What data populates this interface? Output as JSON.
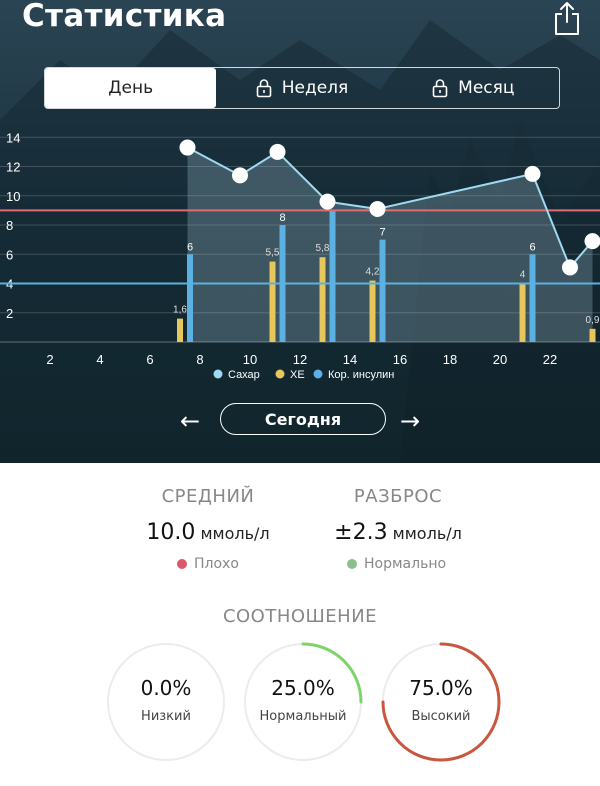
{
  "header": {
    "title": "Статистика"
  },
  "tabs": [
    {
      "label": "День",
      "active": true,
      "locked": false
    },
    {
      "label": "Неделя",
      "active": false,
      "locked": true
    },
    {
      "label": "Месяц",
      "active": false,
      "locked": true
    }
  ],
  "colors": {
    "sugar": "#9fd9f2",
    "xe": "#e7c65b",
    "insulin": "#5ab1e2",
    "high_line": "#e06b70",
    "low_line": "#5ab1e2",
    "bad": "#d9596a",
    "normal": "#8cbf8c",
    "ring_green": "#7fd36a",
    "ring_red": "#c9573f"
  },
  "chart_data": {
    "type": "line",
    "y_ticks": [
      "2",
      "4",
      "6",
      "8",
      "10",
      "12",
      "14"
    ],
    "x_ticks": [
      "2",
      "4",
      "6",
      "8",
      "10",
      "12",
      "14",
      "16",
      "18",
      "20",
      "22"
    ],
    "xlim": [
      0,
      24
    ],
    "ylim": [
      0,
      14.5
    ],
    "thresholds": [
      {
        "value": 9,
        "color": "#e06b70"
      },
      {
        "value": 4,
        "color": "#5ab1e2"
      }
    ],
    "legend": [
      "Сахар",
      "ХЕ",
      "Кор. инсулин"
    ],
    "series": [
      {
        "name": "Сахар",
        "type": "line",
        "points": [
          [
            7.5,
            13.3
          ],
          [
            9.6,
            11.4
          ],
          [
            11.1,
            13.0
          ],
          [
            13.1,
            9.6
          ],
          [
            15.1,
            9.1
          ],
          [
            21.3,
            11.5
          ],
          [
            22.8,
            5.1
          ],
          [
            23.7,
            6.9
          ]
        ]
      },
      {
        "name": "ХЕ",
        "type": "bar",
        "points": [
          [
            7.2,
            1.6,
            "1,6"
          ],
          [
            10.9,
            5.5,
            "5,5"
          ],
          [
            12.9,
            5.8,
            "5,8"
          ],
          [
            14.9,
            4.2,
            "4,2"
          ],
          [
            20.9,
            4,
            "4"
          ],
          [
            23.7,
            0.9,
            "0,9"
          ]
        ]
      },
      {
        "name": "Кор. инсулин",
        "type": "bar",
        "points": [
          [
            7.6,
            6,
            "6"
          ],
          [
            11.3,
            8,
            "8"
          ],
          [
            13.3,
            9,
            ""
          ],
          [
            15.3,
            7,
            "7"
          ],
          [
            21.3,
            6,
            "6"
          ]
        ]
      }
    ]
  },
  "nav": {
    "today": "Сегодня",
    "prev": "←",
    "next": "→"
  },
  "stats": {
    "avg_label": "СРЕДНИЙ",
    "avg_value": "10.0",
    "avg_unit": "ммоль/л",
    "avg_status": "Плохо",
    "spread_label": "РАЗБРОС",
    "spread_value": "±2.3",
    "spread_unit": "ммоль/л",
    "spread_status": "Нормально"
  },
  "ratio": {
    "title": "СООТНОШЕНИЕ",
    "items": [
      {
        "pct": "0.0%",
        "value": 0.0,
        "label": "Низкий",
        "color": "#7fd36a"
      },
      {
        "pct": "25.0%",
        "value": 0.25,
        "label": "Нормальный",
        "color": "#7fd36a"
      },
      {
        "pct": "75.0%",
        "value": 0.75,
        "label": "Высокий",
        "color": "#c9573f"
      }
    ]
  }
}
